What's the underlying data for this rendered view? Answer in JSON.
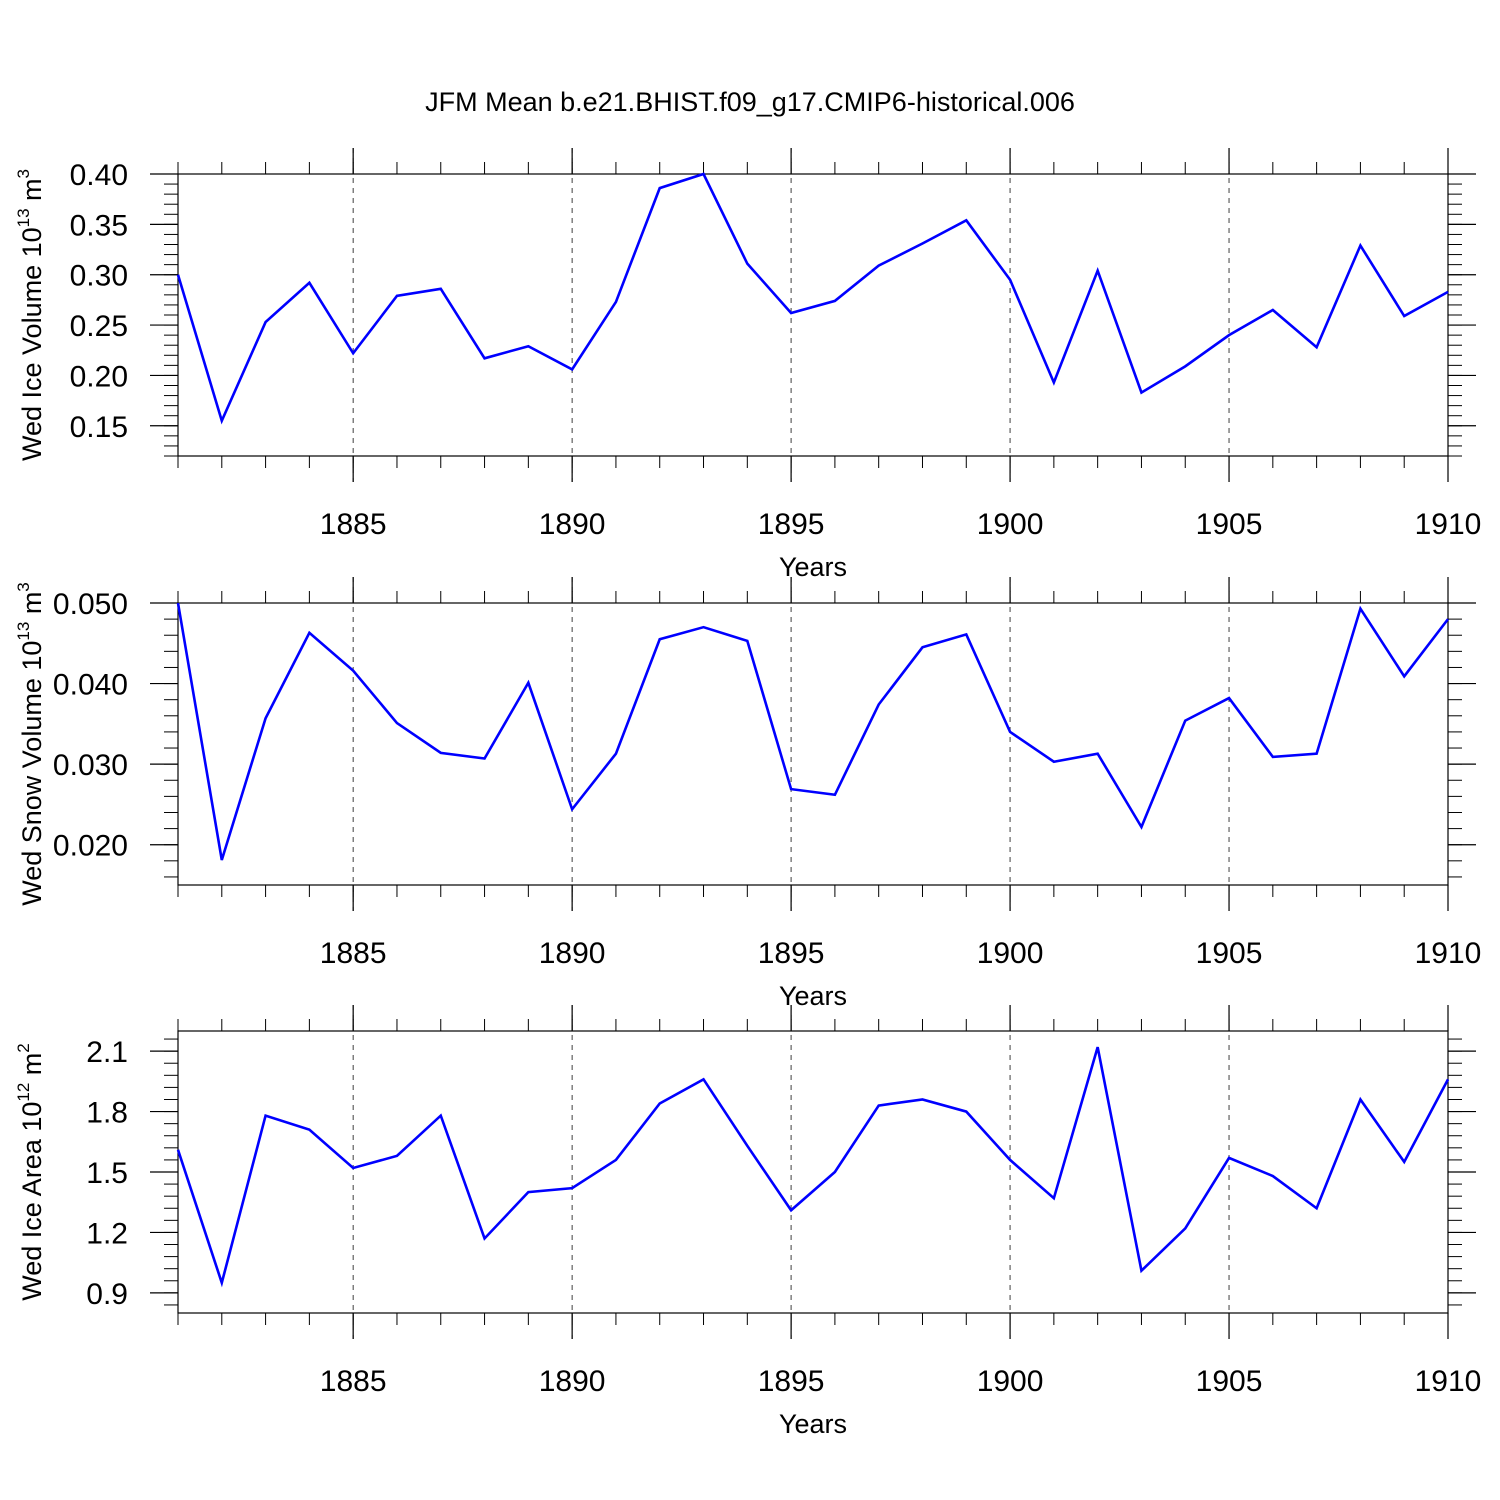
{
  "title": "JFM Mean b.e21.BHIST.f09_g17.CMIP6-historical.006",
  "line_color": "#0000ff",
  "chart_data": [
    {
      "type": "line",
      "ylabel_main": "Wed Ice Volume 10",
      "ylabel_exp": "13",
      "ylabel_unit": "m",
      "ylabel_unit_exp": "3",
      "xlabel": "Years",
      "xlim": [
        1881,
        1910
      ],
      "ylim": [
        0.12,
        0.4
      ],
      "yticks": [
        0.15,
        0.2,
        0.25,
        0.3,
        0.35,
        0.4
      ],
      "ytick_labels": [
        "0.15",
        "0.20",
        "0.25",
        "0.30",
        "0.35",
        "0.40"
      ],
      "xticks": [
        1885,
        1890,
        1895,
        1900,
        1905,
        1910
      ],
      "xtick_labels": [
        "1885",
        "1890",
        "1895",
        "1900",
        "1905",
        "1910"
      ],
      "x": [
        1881,
        1882,
        1883,
        1884,
        1885,
        1886,
        1887,
        1888,
        1889,
        1890,
        1891,
        1892,
        1893,
        1894,
        1895,
        1896,
        1897,
        1898,
        1899,
        1900,
        1901,
        1902,
        1903,
        1904,
        1905,
        1906,
        1907,
        1908,
        1909,
        1910
      ],
      "values": [
        0.3,
        0.155,
        0.253,
        0.292,
        0.222,
        0.279,
        0.286,
        0.217,
        0.229,
        0.206,
        0.273,
        0.386,
        0.4,
        0.311,
        0.262,
        0.274,
        0.309,
        0.331,
        0.354,
        0.295,
        0.193,
        0.304,
        0.183,
        0.209,
        0.24,
        0.265,
        0.228,
        0.329,
        0.259,
        0.283
      ]
    },
    {
      "type": "line",
      "ylabel_main": "Wed Snow Volume 10",
      "ylabel_exp": "13",
      "ylabel_unit": "m",
      "ylabel_unit_exp": "3",
      "xlabel": "Years",
      "xlim": [
        1881,
        1910
      ],
      "ylim": [
        0.015,
        0.05
      ],
      "yticks": [
        0.02,
        0.03,
        0.04,
        0.05
      ],
      "ytick_labels": [
        "0.020",
        "0.030",
        "0.040",
        "0.050"
      ],
      "xticks": [
        1885,
        1890,
        1895,
        1900,
        1905,
        1910
      ],
      "xtick_labels": [
        "1885",
        "1890",
        "1895",
        "1900",
        "1905",
        "1910"
      ],
      "x": [
        1881,
        1882,
        1883,
        1884,
        1885,
        1886,
        1887,
        1888,
        1889,
        1890,
        1891,
        1892,
        1893,
        1894,
        1895,
        1896,
        1897,
        1898,
        1899,
        1900,
        1901,
        1902,
        1903,
        1904,
        1905,
        1906,
        1907,
        1908,
        1909,
        1910
      ],
      "values": [
        0.05,
        0.0181,
        0.0357,
        0.0463,
        0.0416,
        0.0351,
        0.0314,
        0.0307,
        0.0401,
        0.0244,
        0.0313,
        0.0455,
        0.047,
        0.0453,
        0.0269,
        0.0262,
        0.0374,
        0.0445,
        0.0461,
        0.034,
        0.0303,
        0.0313,
        0.0222,
        0.0354,
        0.0382,
        0.0309,
        0.0313,
        0.0493,
        0.0409,
        0.048
      ]
    },
    {
      "type": "line",
      "ylabel_main": "Wed Ice Area 10",
      "ylabel_exp": "12",
      "ylabel_unit": "m",
      "ylabel_unit_exp": "2",
      "xlabel": "Years",
      "xlim": [
        1881,
        1910
      ],
      "ylim": [
        0.8,
        2.2
      ],
      "yticks": [
        0.9,
        1.2,
        1.5,
        1.8,
        2.1
      ],
      "ytick_labels": [
        "0.9",
        "1.2",
        "1.5",
        "1.8",
        "2.1"
      ],
      "xticks": [
        1885,
        1890,
        1895,
        1900,
        1905,
        1910
      ],
      "xtick_labels": [
        "1885",
        "1890",
        "1895",
        "1900",
        "1905",
        "1910"
      ],
      "x": [
        1881,
        1882,
        1883,
        1884,
        1885,
        1886,
        1887,
        1888,
        1889,
        1890,
        1891,
        1892,
        1893,
        1894,
        1895,
        1896,
        1897,
        1898,
        1899,
        1900,
        1901,
        1902,
        1903,
        1904,
        1905,
        1906,
        1907,
        1908,
        1909,
        1910
      ],
      "values": [
        1.61,
        0.95,
        1.78,
        1.71,
        1.52,
        1.58,
        1.78,
        1.17,
        1.4,
        1.42,
        1.56,
        1.84,
        1.96,
        1.63,
        1.31,
        1.5,
        1.83,
        1.86,
        1.8,
        1.56,
        1.37,
        2.12,
        1.01,
        1.22,
        1.57,
        1.48,
        1.32,
        1.86,
        1.55,
        1.96
      ]
    }
  ]
}
